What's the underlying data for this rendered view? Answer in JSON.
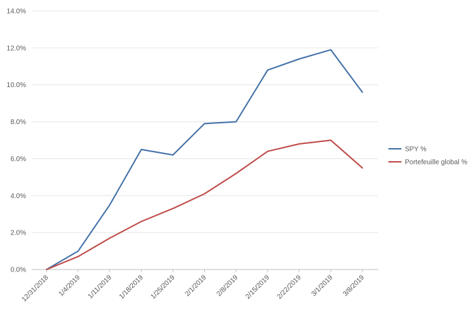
{
  "chart_data": {
    "type": "line",
    "title": "",
    "xlabel": "",
    "ylabel": "",
    "categories": [
      "12/31/2018",
      "1/4/2019",
      "1/11/2019",
      "1/18/2019",
      "1/25/2019",
      "2/1/2019",
      "2/8/2019",
      "2/15/2019",
      "2/22/2019",
      "3/1/2019",
      "3/8/2019"
    ],
    "y_ticks": [
      "0.0%",
      "2.0%",
      "4.0%",
      "6.0%",
      "8.0%",
      "10.0%",
      "12.0%",
      "14.0%"
    ],
    "ylim": [
      0,
      14
    ],
    "grid": true,
    "legend_position": "right",
    "series": [
      {
        "name": "SPY %",
        "color": "#4472a8",
        "values": [
          0.0,
          1.0,
          3.5,
          6.5,
          6.2,
          7.9,
          8.0,
          10.8,
          11.4,
          11.9,
          9.6
        ]
      },
      {
        "name": "Portefeuille global %",
        "color": "#be4b48",
        "values": [
          0.0,
          0.7,
          1.7,
          2.6,
          3.3,
          4.1,
          5.2,
          6.4,
          6.8,
          7.0,
          5.5
        ]
      }
    ]
  }
}
